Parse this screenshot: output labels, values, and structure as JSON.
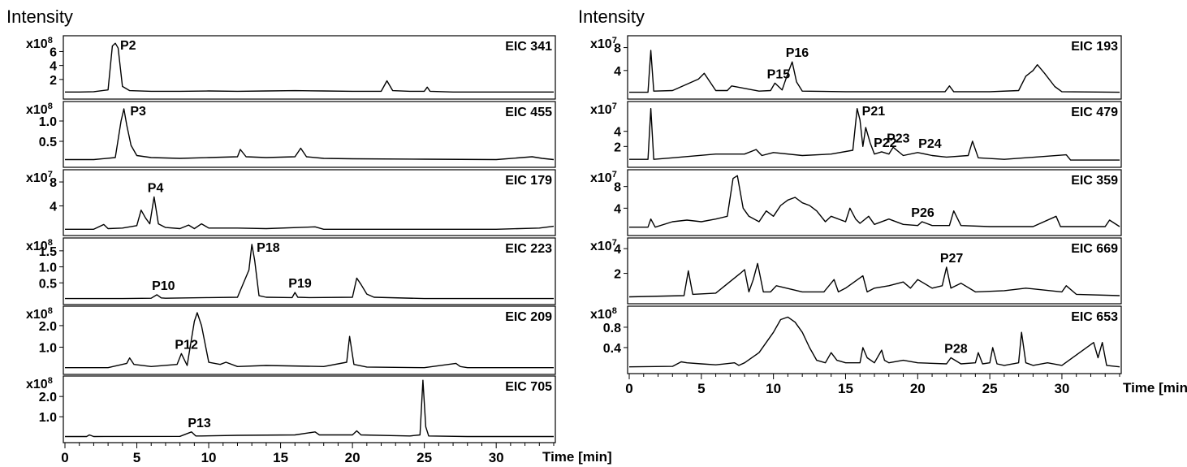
{
  "left_column": {
    "ylabel": "Intensity",
    "xlabel": "Time [min]",
    "x_ticks": [
      "0",
      "5",
      "10",
      "15",
      "20",
      "25",
      "30"
    ]
  },
  "right_column": {
    "ylabel": "Intensity",
    "xlabel": "Time [min]",
    "x_ticks": [
      "0",
      "5",
      "10",
      "15",
      "20",
      "25",
      "30"
    ]
  },
  "chart_data": [
    {
      "type": "line",
      "title": "EIC 341",
      "multiplier": "x10",
      "exponent": "8",
      "x_range": [
        0,
        34
      ],
      "y_range": [
        0,
        7.8
      ],
      "y_ticks": [
        "2",
        "4",
        "6"
      ],
      "y_tick_values": [
        2,
        4,
        6
      ],
      "x": [
        0,
        1,
        2,
        3,
        3.3,
        3.5,
        3.7,
        4,
        4.5,
        6,
        8,
        10,
        12,
        14,
        16,
        18,
        20,
        22,
        22.4,
        22.8,
        24,
        25,
        25.2,
        25.4,
        27,
        30,
        34
      ],
      "y": [
        0.2,
        0.2,
        0.25,
        0.5,
        6.8,
        7.2,
        6.5,
        1.0,
        0.4,
        0.3,
        0.3,
        0.35,
        0.3,
        0.35,
        0.4,
        0.35,
        0.3,
        0.3,
        1.8,
        0.4,
        0.3,
        0.3,
        0.9,
        0.3,
        0.2,
        0.2,
        0.2
      ],
      "peaks": [
        {
          "label": "P2",
          "x": 3.5
        }
      ]
    },
    {
      "type": "line",
      "title": "EIC 455",
      "multiplier": "x10",
      "exponent": "8",
      "x_range": [
        0,
        34
      ],
      "y_range": [
        0,
        1.4
      ],
      "y_ticks": [
        "0.5",
        "1.0"
      ],
      "y_tick_values": [
        0.5,
        1.0
      ],
      "x": [
        0,
        2,
        3.5,
        3.9,
        4.1,
        4.3,
        4.6,
        5,
        6,
        8,
        10,
        12,
        12.2,
        12.6,
        14,
        16,
        16.4,
        16.8,
        18,
        20,
        25,
        30,
        32.5,
        33.2,
        34
      ],
      "y": [
        0.05,
        0.05,
        0.1,
        1.0,
        1.3,
        0.9,
        0.4,
        0.15,
        0.1,
        0.08,
        0.1,
        0.12,
        0.3,
        0.12,
        0.1,
        0.12,
        0.33,
        0.12,
        0.08,
        0.07,
        0.06,
        0.05,
        0.12,
        0.08,
        0.05
      ],
      "peaks": [
        {
          "label": "P3",
          "x": 4.2
        }
      ]
    },
    {
      "type": "line",
      "title": "EIC 179",
      "multiplier": "x10",
      "exponent": "7",
      "x_range": [
        0,
        34
      ],
      "y_range": [
        0,
        9.5
      ],
      "y_ticks": [
        "4",
        "8"
      ],
      "y_tick_values": [
        4,
        8
      ],
      "x": [
        0,
        2,
        2.7,
        3,
        4,
        5,
        5.3,
        5.6,
        5.9,
        6.2,
        6.5,
        7,
        8,
        8.6,
        9,
        9.5,
        10,
        12,
        14,
        17.4,
        18,
        20,
        25,
        30,
        33,
        34
      ],
      "y": [
        0.1,
        0.1,
        0.9,
        0.2,
        0.3,
        0.7,
        3.3,
        2.0,
        1.0,
        5.5,
        1.0,
        0.4,
        0.2,
        0.8,
        0.2,
        1.0,
        0.3,
        0.3,
        0.2,
        0.5,
        0.1,
        0.1,
        0.1,
        0.1,
        0.3,
        0.6
      ],
      "peaks": [
        {
          "label": "P4",
          "x": 6.2
        }
      ]
    },
    {
      "type": "line",
      "title": "EIC 223",
      "multiplier": "x10",
      "exponent": "8",
      "x_range": [
        0,
        34
      ],
      "y_range": [
        0,
        1.8
      ],
      "y_ticks": [
        "0.5",
        "1.0",
        "1.5"
      ],
      "y_tick_values": [
        0.5,
        1.0,
        1.5
      ],
      "x": [
        0,
        4,
        6,
        6.4,
        6.7,
        7,
        10,
        12,
        12.8,
        13,
        13.2,
        13.5,
        14,
        15.8,
        16,
        16.2,
        17,
        20,
        20.3,
        20.6,
        21,
        21.5,
        25,
        30,
        34
      ],
      "y": [
        0.01,
        0.01,
        0.02,
        0.13,
        0.03,
        0.02,
        0.04,
        0.05,
        0.9,
        1.7,
        1.2,
        0.1,
        0.05,
        0.04,
        0.2,
        0.05,
        0.04,
        0.05,
        0.65,
        0.45,
        0.15,
        0.05,
        0.01,
        0.01,
        0.01
      ],
      "peaks": [
        {
          "label": "P10",
          "x": 6.5
        },
        {
          "label": "P18",
          "x": 13.0
        },
        {
          "label": "P19",
          "x": 16.0
        }
      ]
    },
    {
      "type": "line",
      "title": "EIC 209",
      "multiplier": "x10",
      "exponent": "8",
      "x_range": [
        0,
        34
      ],
      "y_range": [
        0,
        2.75
      ],
      "y_ticks": [
        "1.0",
        "2.0"
      ],
      "y_tick_values": [
        1.0,
        2.0
      ],
      "x": [
        0,
        3,
        4.3,
        4.5,
        4.8,
        6,
        7.8,
        8.1,
        8.5,
        9,
        9.2,
        9.5,
        10,
        10.8,
        11.2,
        12,
        14,
        18,
        19.6,
        19.8,
        20.1,
        21,
        25,
        27.2,
        27.5,
        28,
        34
      ],
      "y": [
        0.05,
        0.05,
        0.25,
        0.5,
        0.2,
        0.1,
        0.2,
        0.7,
        0.15,
        2.2,
        2.6,
        2.0,
        0.3,
        0.2,
        0.3,
        0.1,
        0.15,
        0.1,
        0.3,
        1.5,
        0.2,
        0.08,
        0.05,
        0.25,
        0.1,
        0.05,
        0.05
      ],
      "peaks": [
        {
          "label": "P12",
          "x": 8.1
        }
      ]
    },
    {
      "type": "line",
      "title": "EIC 705",
      "multiplier": "x10",
      "exponent": "8",
      "x_range": [
        0,
        34
      ],
      "y_range": [
        0,
        2.85
      ],
      "y_ticks": [
        "1.0",
        "2.0"
      ],
      "y_tick_values": [
        1.0,
        2.0
      ],
      "x": [
        0,
        1.5,
        1.7,
        2,
        8,
        8.8,
        9.1,
        9.5,
        12,
        16,
        17.4,
        17.7,
        20,
        20.3,
        20.6,
        24,
        24.7,
        24.9,
        25.1,
        25.3,
        28,
        34
      ],
      "y": [
        0.02,
        0.02,
        0.1,
        0.02,
        0.03,
        0.25,
        0.05,
        0.05,
        0.08,
        0.1,
        0.25,
        0.1,
        0.1,
        0.3,
        0.1,
        0.05,
        0.1,
        2.8,
        0.5,
        0.05,
        0.02,
        0.02
      ],
      "peaks": [
        {
          "label": "P13",
          "x": 9.0
        }
      ]
    },
    {
      "type": "line",
      "title": "EIC 193",
      "multiplier": "x10",
      "exponent": "7",
      "x_range": [
        0,
        34
      ],
      "y_range": [
        0,
        9.5
      ],
      "y_ticks": [
        "4",
        "8"
      ],
      "y_tick_values": [
        4,
        8
      ],
      "x": [
        0,
        1.3,
        1.5,
        1.7,
        3,
        4.8,
        5.2,
        5.6,
        6,
        6.8,
        7.1,
        9,
        9.8,
        10.1,
        10.6,
        11,
        11.3,
        11.6,
        12,
        15,
        20,
        21.9,
        22.2,
        22.5,
        25,
        27,
        27.5,
        28,
        28.3,
        28.8,
        29.5,
        30,
        34
      ],
      "y": [
        0.2,
        0.2,
        7.5,
        0.4,
        0.5,
        2.5,
        3.5,
        2.0,
        0.5,
        0.5,
        1.3,
        0.4,
        0.5,
        1.8,
        0.6,
        3.5,
        5.5,
        2.0,
        0.4,
        0.3,
        0.3,
        0.3,
        1.3,
        0.3,
        0.3,
        0.5,
        3.0,
        4.0,
        5.0,
        3.5,
        1.2,
        0.3,
        0.2
      ],
      "peaks": [
        {
          "label": "P15",
          "x": 10.0
        },
        {
          "label": "P16",
          "x": 11.3
        }
      ]
    },
    {
      "type": "line",
      "title": "EIC 479",
      "multiplier": "x10",
      "exponent": "7",
      "x_range": [
        0,
        34
      ],
      "y_range": [
        0,
        7.5
      ],
      "y_ticks": [
        "2",
        "4"
      ],
      "y_tick_values": [
        2,
        4
      ],
      "x": [
        0,
        1.3,
        1.5,
        1.7,
        3,
        6,
        7,
        8,
        8.8,
        9.2,
        10,
        12,
        14,
        15.5,
        15.8,
        16,
        16.2,
        16.4,
        16.7,
        17,
        17.5,
        18,
        18.3,
        19,
        20,
        21,
        22,
        23.5,
        23.8,
        24.2,
        26,
        30.3,
        30.6,
        33,
        34
      ],
      "y": [
        0.3,
        0.3,
        7.0,
        0.3,
        0.5,
        1.0,
        1.0,
        1.0,
        1.6,
        0.8,
        1.2,
        0.8,
        1.0,
        1.5,
        7.0,
        5.5,
        2.0,
        4.5,
        2.5,
        1.0,
        1.3,
        1.0,
        1.9,
        0.8,
        1.2,
        0.8,
        0.6,
        0.8,
        2.7,
        0.5,
        0.3,
        0.9,
        0.2,
        0.2,
        0.2
      ],
      "peaks": [
        {
          "label": "P21",
          "x": 15.8
        },
        {
          "label": "P22",
          "x": 17.4
        },
        {
          "label": "P23",
          "x": 18.3
        },
        {
          "label": "P24",
          "x": 20.5
        }
      ]
    },
    {
      "type": "line",
      "title": "EIC 359",
      "multiplier": "x10",
      "exponent": "7",
      "x_range": [
        0,
        34
      ],
      "y_range": [
        0,
        10.5
      ],
      "y_ticks": [
        "4",
        "8"
      ],
      "y_tick_values": [
        4,
        8
      ],
      "x": [
        0,
        1.3,
        1.5,
        1.8,
        3,
        4,
        5,
        6,
        6.8,
        7.2,
        7.5,
        7.9,
        8.3,
        9,
        9.5,
        10,
        10.5,
        11,
        11.5,
        12,
        12.5,
        13,
        13.6,
        14,
        15,
        15.3,
        15.7,
        16,
        16.6,
        17,
        18,
        19,
        20,
        20.3,
        21,
        22.2,
        22.5,
        23,
        25,
        28,
        29.6,
        29.9,
        31,
        33,
        33.3,
        34
      ],
      "y": [
        0.5,
        0.5,
        2.0,
        0.5,
        1.5,
        1.8,
        1.5,
        2.0,
        2.5,
        9.5,
        10.0,
        4.0,
        2.5,
        1.5,
        3.5,
        2.5,
        4.5,
        5.5,
        6.0,
        5.0,
        4.5,
        3.5,
        1.5,
        2.5,
        1.5,
        4.0,
        2.0,
        1.2,
        2.5,
        1.0,
        2.0,
        1.0,
        0.8,
        1.5,
        0.8,
        0.8,
        3.5,
        0.8,
        0.6,
        0.6,
        2.5,
        0.6,
        0.6,
        0.6,
        1.8,
        0.6
      ],
      "peaks": [
        {
          "label": "P26",
          "x": 20.0
        }
      ]
    },
    {
      "type": "line",
      "title": "EIC 669",
      "multiplier": "x10",
      "exponent": "7",
      "x_range": [
        0,
        34
      ],
      "y_range": [
        0,
        4.6
      ],
      "y_ticks": [
        "2",
        "4"
      ],
      "y_tick_values": [
        2,
        4
      ],
      "x": [
        0,
        3.8,
        4.1,
        4.4,
        6,
        7.7,
        8,
        8.3,
        8.6,
        8.9,
        9.3,
        9.8,
        10.2,
        12,
        13.5,
        14.2,
        14.5,
        15,
        16.2,
        16.5,
        17,
        18,
        19,
        19.5,
        20,
        21,
        21.7,
        22,
        22.3,
        23,
        24,
        26,
        27.5,
        30,
        30.3,
        31,
        34
      ],
      "y": [
        0.1,
        0.2,
        2.2,
        0.3,
        0.4,
        2.0,
        2.3,
        0.5,
        1.5,
        2.8,
        0.5,
        0.5,
        1.0,
        0.5,
        0.5,
        1.5,
        0.5,
        0.8,
        1.8,
        0.5,
        0.8,
        1.0,
        1.3,
        0.8,
        1.5,
        0.8,
        1.0,
        2.5,
        0.8,
        1.2,
        0.5,
        0.6,
        0.8,
        0.5,
        1.0,
        0.3,
        0.2
      ],
      "peaks": [
        {
          "label": "P27",
          "x": 22.0
        }
      ]
    },
    {
      "type": "line",
      "title": "EIC 653",
      "multiplier": "x10",
      "exponent": "8",
      "x_range": [
        0,
        34
      ],
      "y_range": [
        0,
        1.15
      ],
      "y_ticks": [
        "0.4",
        "0.8"
      ],
      "y_tick_values": [
        0.4,
        0.8
      ],
      "x": [
        0,
        3,
        3.6,
        4,
        5,
        6,
        7.3,
        7.6,
        8,
        9,
        10,
        10.5,
        11,
        11.5,
        12,
        12.5,
        13,
        13.6,
        14,
        14.4,
        15,
        16,
        16.2,
        16.5,
        17,
        17.5,
        17.7,
        18,
        19,
        20,
        22,
        22.3,
        23,
        24,
        24.2,
        24.5,
        25,
        25.2,
        25.5,
        26,
        27,
        27.2,
        27.5,
        28,
        29,
        30,
        32.2,
        32.5,
        32.8,
        33.1,
        34
      ],
      "y": [
        0.02,
        0.03,
        0.12,
        0.1,
        0.08,
        0.06,
        0.1,
        0.05,
        0.1,
        0.3,
        0.7,
        0.95,
        1.0,
        0.9,
        0.7,
        0.4,
        0.15,
        0.1,
        0.3,
        0.15,
        0.1,
        0.1,
        0.4,
        0.2,
        0.1,
        0.35,
        0.15,
        0.1,
        0.15,
        0.1,
        0.08,
        0.2,
        0.08,
        0.1,
        0.3,
        0.08,
        0.1,
        0.4,
        0.08,
        0.05,
        0.1,
        0.7,
        0.1,
        0.05,
        0.1,
        0.05,
        0.5,
        0.2,
        0.5,
        0.05,
        0.02
      ],
      "peaks": [
        {
          "label": "P28",
          "x": 22.3
        }
      ]
    }
  ]
}
